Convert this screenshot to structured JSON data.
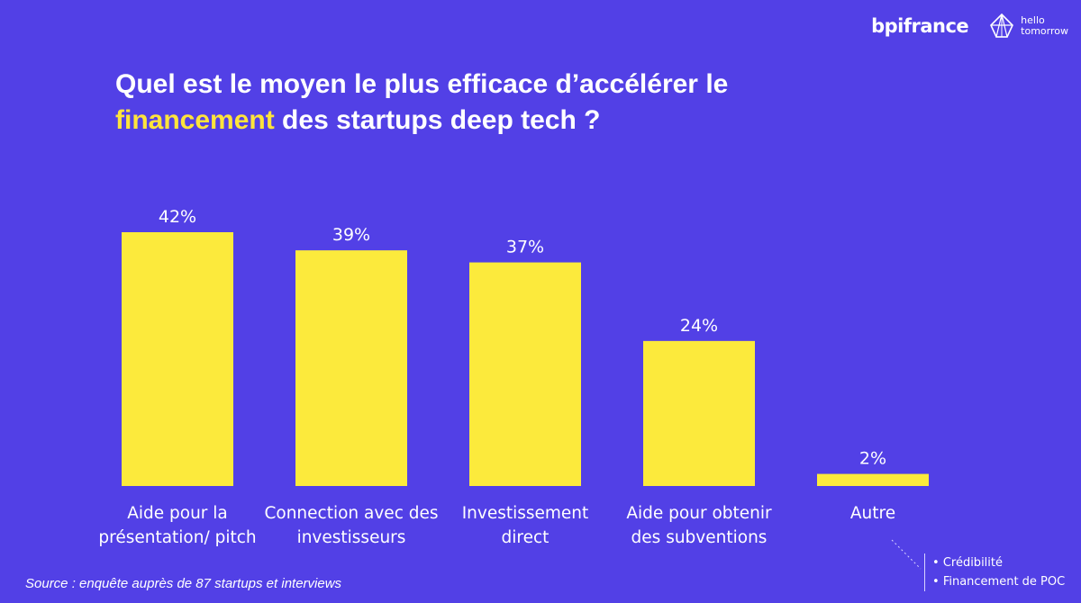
{
  "logos": {
    "bpifrance": "bpifrance",
    "hello_line1": "hello",
    "hello_line2": "tomorrow"
  },
  "title": {
    "line1": "Quel est le moyen le plus efficace d’accélérer le",
    "highlight": "financement",
    "line2_rest": " des startups deep tech ?"
  },
  "colors": {
    "background": "#5240e6",
    "bar": "#fcea3c",
    "highlight": "#ffe43b",
    "text": "#ffffff"
  },
  "chart_data": {
    "type": "bar",
    "title": "Quel est le moyen le plus efficace d’accélérer le financement des startups deep tech ?",
    "categories": [
      [
        "Aide pour la",
        "présentation/ pitch"
      ],
      [
        "Connection avec des",
        "investisseurs"
      ],
      [
        "Investissement",
        "direct"
      ],
      [
        "Aide pour obtenir",
        "des subventions"
      ],
      [
        "Autre"
      ]
    ],
    "values": [
      42,
      39,
      37,
      24,
      2
    ],
    "value_labels": [
      "42%",
      "39%",
      "37%",
      "24%",
      "2%"
    ],
    "unit": "%",
    "ylim": [
      0,
      42
    ],
    "xlabel": "",
    "ylabel": "",
    "grid": false
  },
  "autre_note": {
    "items": [
      "Crédibilité",
      "Financement de POC"
    ]
  },
  "source": "Source : enquête auprès de 87 startups et interviews"
}
